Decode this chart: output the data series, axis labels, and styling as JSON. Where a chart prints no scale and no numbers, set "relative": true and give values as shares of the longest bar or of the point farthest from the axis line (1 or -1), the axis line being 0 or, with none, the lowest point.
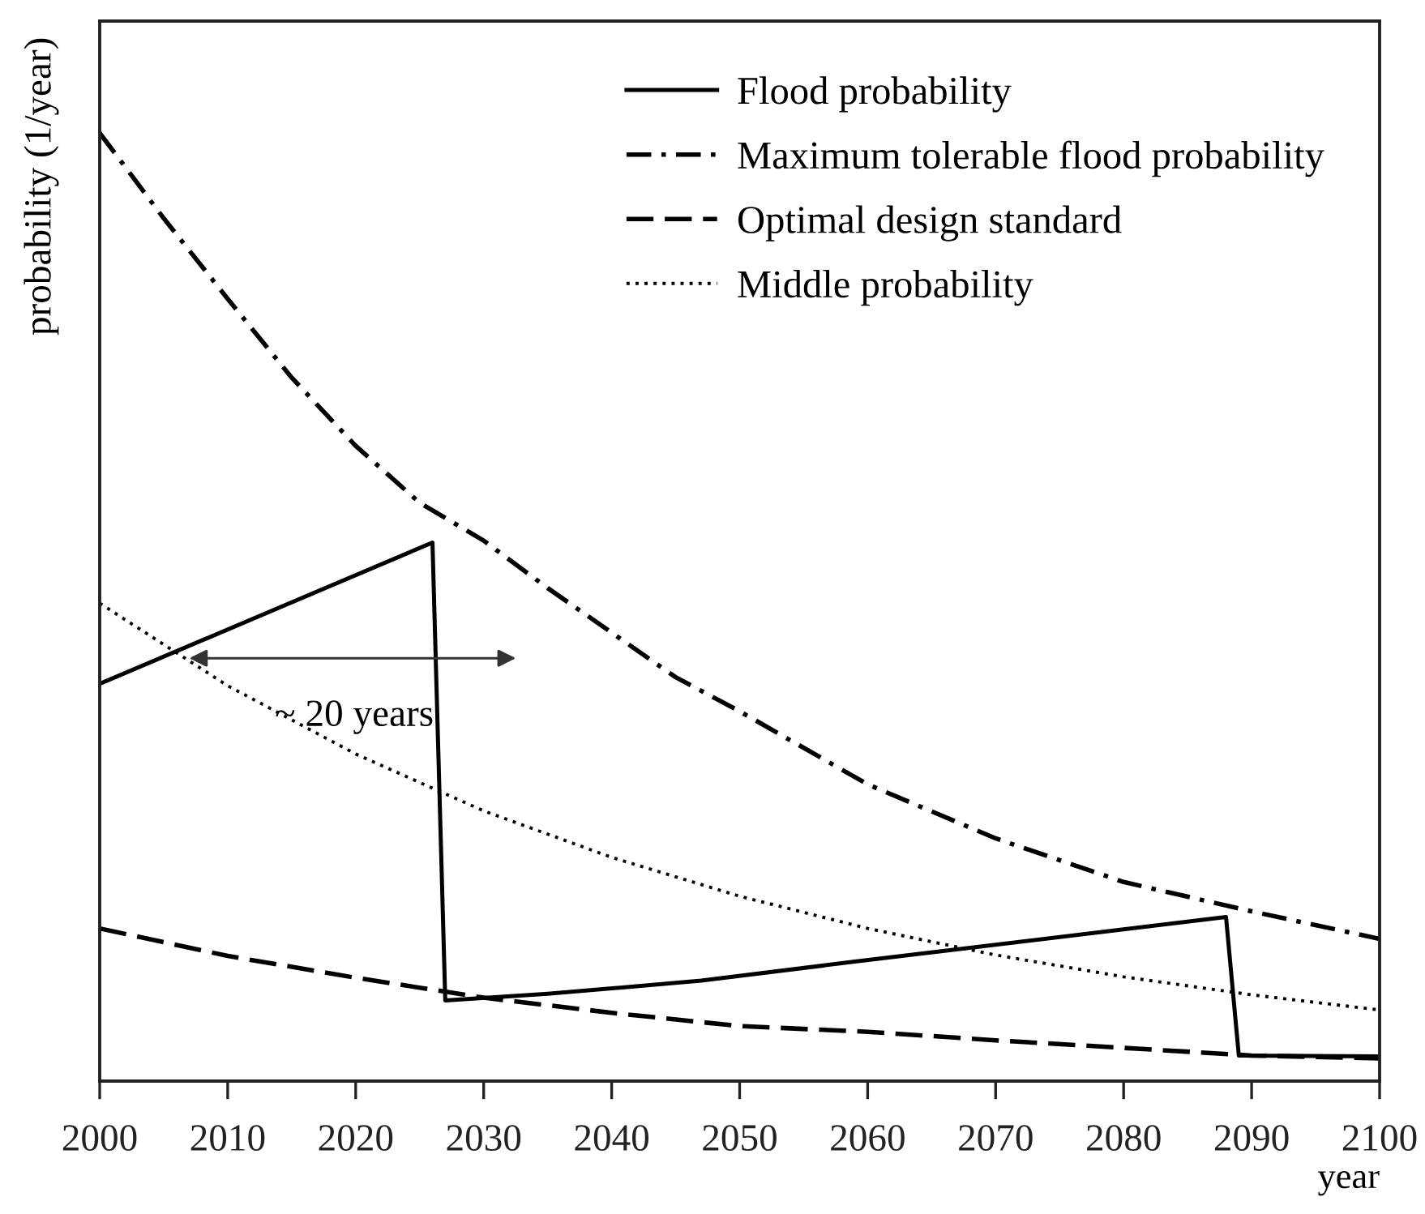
{
  "chart_data": {
    "type": "line",
    "relative": true,
    "xlabel": "year",
    "ylabel": "probability (1/year)",
    "xlim": [
      2000,
      2100
    ],
    "xticks": [
      2000,
      2010,
      2020,
      2030,
      2040,
      2050,
      2060,
      2070,
      2080,
      2090,
      2100
    ],
    "legend": "top right",
    "series": [
      {
        "name": "Flood probability",
        "color": "#000000",
        "line_style": "solid",
        "x": [
          2000,
          2026,
          2027,
          2035,
          2047,
          2059,
          2088,
          2089,
          2100
        ],
        "values": [
          0.419,
          0.568,
          0.085,
          0.092,
          0.106,
          0.126,
          0.173,
          0.027,
          0.026
        ]
      },
      {
        "name": "Maximum tolerable flood probability",
        "color": "#000000",
        "line_style": "dashdot",
        "x": [
          2000,
          2005,
          2010,
          2015,
          2020,
          2025,
          2030,
          2035,
          2040,
          2045,
          2050,
          2060,
          2070,
          2080,
          2090,
          2100
        ],
        "values": [
          1.0,
          0.91,
          0.825,
          0.742,
          0.67,
          0.61,
          0.57,
          0.52,
          0.473,
          0.426,
          0.39,
          0.313,
          0.256,
          0.21,
          0.179,
          0.15
        ]
      },
      {
        "name": "Optimal design standard",
        "color": "#000000",
        "line_style": "dashed",
        "x": [
          2000,
          2010,
          2020,
          2030,
          2040,
          2050,
          2060,
          2070,
          2080,
          2090,
          2100
        ],
        "values": [
          0.161,
          0.132,
          0.109,
          0.088,
          0.072,
          0.058,
          0.052,
          0.043,
          0.035,
          0.027,
          0.024
        ]
      },
      {
        "name": "Middle probability",
        "color": "#000000",
        "line_style": "dotted",
        "x": [
          2000,
          2010,
          2020,
          2030,
          2040,
          2050,
          2060,
          2070,
          2080,
          2090,
          2100
        ],
        "values": [
          0.504,
          0.417,
          0.345,
          0.285,
          0.236,
          0.195,
          0.161,
          0.133,
          0.11,
          0.091,
          0.075
        ]
      }
    ],
    "annotations": [
      {
        "text": "~ 20 years",
        "x": 2007,
        "y": 0.446
      }
    ]
  }
}
